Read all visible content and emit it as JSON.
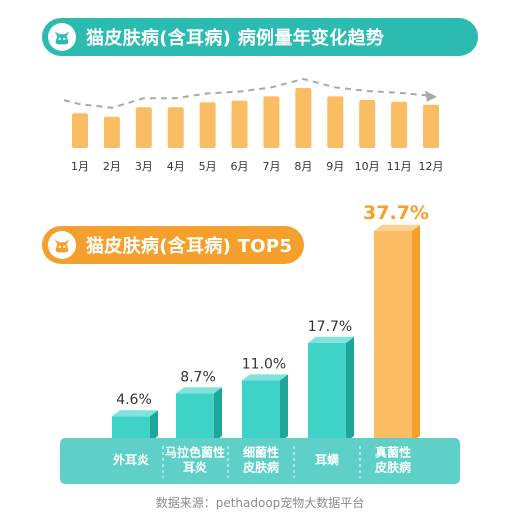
{
  "colors": {
    "teal": "#2bbbb0",
    "teal_bar_front": "#3fd3c8",
    "teal_bar_side": "#1fa69b",
    "teal_base": "#5fd0c7",
    "orange": "#f5a02c",
    "bar_light_orange": "#fbbd63",
    "dashed_line": "#a9a9a9"
  },
  "icons": {
    "trend_badge": "cat-icon",
    "top5_badge": "cat-icon"
  },
  "source_text": "数据来源：pethadoop宠物大数据平台",
  "chart_data": [
    {
      "type": "bar",
      "title": "猫皮肤病(含耳病) 病例量年变化趋势",
      "categories": [
        "1月",
        "2月",
        "3月",
        "4月",
        "5月",
        "6月",
        "7月",
        "8月",
        "9月",
        "10月",
        "11月",
        "12月"
      ],
      "values": [
        58,
        52,
        68,
        68,
        76,
        79,
        86,
        100,
        86,
        80,
        77,
        72
      ],
      "value_unit": "relative case volume (no axis printed, estimated)",
      "overlay": "dashed trend line",
      "grid": false,
      "legend": "none"
    },
    {
      "type": "bar",
      "title": "猫皮肤病(含耳病) TOP5",
      "categories": [
        "外耳炎",
        "马拉色菌性耳炎",
        "细菌性皮肤病",
        "耳螨",
        "真菌性皮肤病"
      ],
      "category_lines": [
        [
          "外耳炎"
        ],
        [
          "马拉色菌性",
          "耳炎"
        ],
        [
          "细菌性",
          "皮肤病"
        ],
        [
          "耳螨"
        ],
        [
          "真菌性",
          "皮肤病"
        ]
      ],
      "values": [
        4.6,
        8.7,
        11.0,
        17.7,
        37.7
      ],
      "value_labels": [
        "4.6%",
        "8.7%",
        "11.0%",
        "17.7%",
        "37.7%"
      ],
      "highlight_index": 4,
      "ylim": [
        0,
        40
      ],
      "grid": false,
      "legend": "none"
    }
  ]
}
